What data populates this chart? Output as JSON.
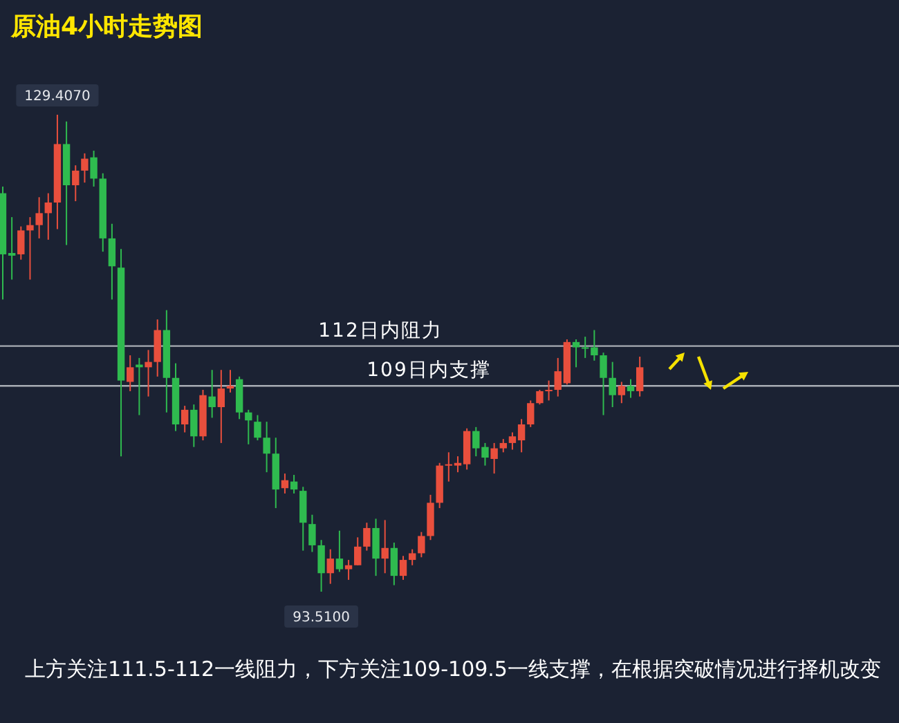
{
  "chart_data": {
    "type": "candlestick",
    "title": "原油4小时走势图",
    "categories": [
      null,
      null,
      null,
      null,
      null,
      null,
      null,
      null,
      null,
      null,
      null,
      null,
      null,
      null,
      null,
      null,
      null,
      null,
      null,
      null,
      null,
      null,
      null,
      null,
      null,
      null,
      null,
      null,
      null,
      null,
      null,
      null,
      null,
      null,
      null,
      null,
      null,
      null,
      null,
      null,
      null,
      null,
      null,
      null,
      null,
      null,
      null,
      null,
      null,
      null,
      null,
      null,
      null,
      null,
      null,
      null,
      null,
      null,
      null,
      null,
      null,
      null,
      null,
      null,
      null,
      null,
      null,
      null,
      null,
      null,
      null
    ],
    "ohlc": [
      [
        123.5,
        124.0,
        115.5,
        118.9
      ],
      [
        119.0,
        121.7,
        117.0,
        118.8
      ],
      [
        118.9,
        121.0,
        118.5,
        120.7
      ],
      [
        120.7,
        121.7,
        117.0,
        121.1
      ],
      [
        121.1,
        123.2,
        120.1,
        122.0
      ],
      [
        122.0,
        123.5,
        120.0,
        122.8
      ],
      [
        122.8,
        129.407,
        120.8,
        127.2
      ],
      [
        127.2,
        128.9,
        119.6,
        124.1
      ],
      [
        124.1,
        125.6,
        122.9,
        125.2
      ],
      [
        125.2,
        126.5,
        124.3,
        126.1
      ],
      [
        126.2,
        126.7,
        124.0,
        124.6
      ],
      [
        124.6,
        125.0,
        119.1,
        120.1
      ],
      [
        120.1,
        121.2,
        115.5,
        118.0
      ],
      [
        117.9,
        119.3,
        103.7,
        109.4
      ],
      [
        109.3,
        111.3,
        108.6,
        110.4
      ],
      [
        110.6,
        111.1,
        106.8,
        110.4
      ],
      [
        110.4,
        111.7,
        108.2,
        110.8
      ],
      [
        110.8,
        114.0,
        109.7,
        113.2
      ],
      [
        113.2,
        114.7,
        107.0,
        109.6
      ],
      [
        109.6,
        110.7,
        105.6,
        106.1
      ],
      [
        106.1,
        107.5,
        105.5,
        107.2
      ],
      [
        107.2,
        107.6,
        104.4,
        105.2
      ],
      [
        105.2,
        108.7,
        104.9,
        108.3
      ],
      [
        108.2,
        110.2,
        106.6,
        107.4
      ],
      [
        107.4,
        110.2,
        104.7,
        108.8
      ],
      [
        108.8,
        110.2,
        108.5,
        109.0
      ],
      [
        109.5,
        109.7,
        106.5,
        107.0
      ],
      [
        107.0,
        107.2,
        104.6,
        106.4
      ],
      [
        106.3,
        106.8,
        104.9,
        105.1
      ],
      [
        105.1,
        106.3,
        102.5,
        103.9
      ],
      [
        103.9,
        105.1,
        99.8,
        101.2
      ],
      [
        101.3,
        102.4,
        100.9,
        101.9
      ],
      [
        101.8,
        102.3,
        100.9,
        101.2
      ],
      [
        101.1,
        101.4,
        96.6,
        98.7
      ],
      [
        98.6,
        99.3,
        96.5,
        97.0
      ],
      [
        97.0,
        97.4,
        93.51,
        94.9
      ],
      [
        94.9,
        96.7,
        94.1,
        96.0
      ],
      [
        96.0,
        98.1,
        95.0,
        95.2
      ],
      [
        95.2,
        95.9,
        94.4,
        95.5
      ],
      [
        95.5,
        97.6,
        95.5,
        96.9
      ],
      [
        96.9,
        98.7,
        96.6,
        98.3
      ],
      [
        98.3,
        99.0,
        94.7,
        96.0
      ],
      [
        96.0,
        98.9,
        94.9,
        96.8
      ],
      [
        96.8,
        97.2,
        94.0,
        94.7
      ],
      [
        94.7,
        96.2,
        94.4,
        95.9
      ],
      [
        95.9,
        96.7,
        95.5,
        96.4
      ],
      [
        96.4,
        98.0,
        96.1,
        97.7
      ],
      [
        97.7,
        100.8,
        97.4,
        100.2
      ],
      [
        100.2,
        103.2,
        99.8,
        103.0
      ],
      [
        103.0,
        104.0,
        101.8,
        103.1
      ],
      [
        103.0,
        103.7,
        102.5,
        103.2
      ],
      [
        103.1,
        105.8,
        102.7,
        105.6
      ],
      [
        105.6,
        105.9,
        103.7,
        104.3
      ],
      [
        104.4,
        104.7,
        103.0,
        103.6
      ],
      [
        103.5,
        104.7,
        102.4,
        104.3
      ],
      [
        104.3,
        105.0,
        104.0,
        104.7
      ],
      [
        104.7,
        105.5,
        104.2,
        105.2
      ],
      [
        104.9,
        106.5,
        104.0,
        106.1
      ],
      [
        106.1,
        107.9,
        105.9,
        107.7
      ],
      [
        107.7,
        108.7,
        107.6,
        108.6
      ],
      [
        108.6,
        109.4,
        107.9,
        108.7
      ],
      [
        108.7,
        111.1,
        108.2,
        110.1
      ],
      [
        109.2,
        112.5,
        109.1,
        112.3
      ],
      [
        112.3,
        112.5,
        110.4,
        111.9
      ],
      [
        111.9,
        112.7,
        111.1,
        111.8
      ],
      [
        111.9,
        113.2,
        110.9,
        111.3
      ],
      [
        111.3,
        111.5,
        106.8,
        109.6
      ],
      [
        109.6,
        110.8,
        107.4,
        108.3
      ],
      [
        108.3,
        109.3,
        107.7,
        109.0
      ],
      [
        109.0,
        109.5,
        108.1,
        108.6
      ],
      [
        108.6,
        111.2,
        108.2,
        110.4
      ]
    ],
    "ref_lines": [
      {
        "axis": "y",
        "value": 112,
        "label": "112日内阻力",
        "color": "#a9adb5"
      },
      {
        "axis": "y",
        "value": 109,
        "label": "109日内支撑",
        "color": "#a9adb5"
      }
    ],
    "annotations": [
      {
        "text": "129.4070",
        "y": 129.407
      },
      {
        "text": "93.5100",
        "y": 93.51
      },
      "上方关注111.5-112一线阻力，下方关注109-109.5一线支撑，在根据突破情况进行择机改变"
    ]
  }
}
